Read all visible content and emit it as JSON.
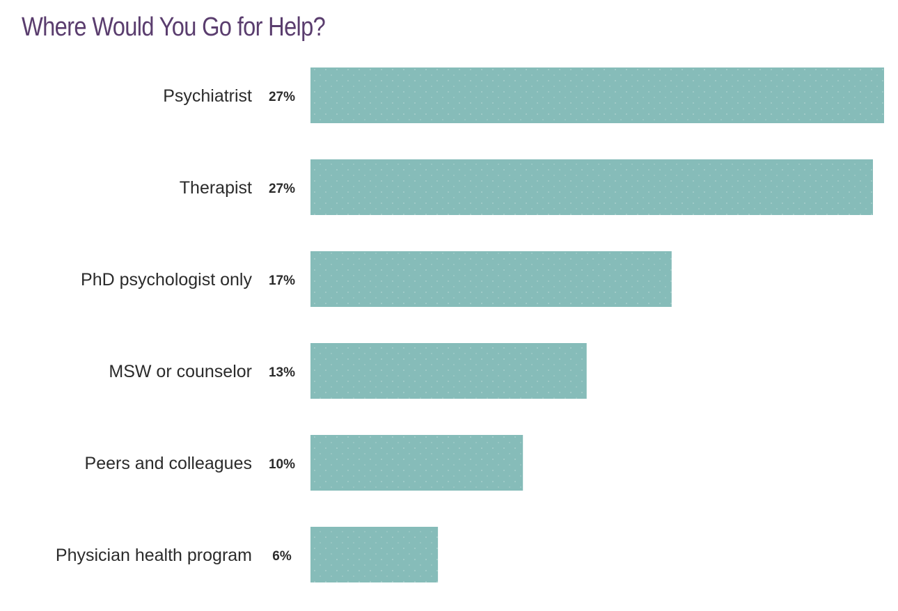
{
  "chart_data": {
    "type": "bar",
    "orientation": "horizontal",
    "title": "Where Would You Go for Help?",
    "categories": [
      "Psychiatrist",
      "Therapist",
      "PhD psychologist only",
      "MSW or counselor",
      "Peers and colleagues",
      "Physician health program"
    ],
    "values": [
      27,
      27,
      17,
      13,
      10,
      6
    ],
    "value_labels": [
      "27%",
      "27%",
      "17%",
      "13%",
      "10%",
      "6%"
    ],
    "xlabel": "",
    "ylabel": "",
    "unit": "%",
    "grid": false,
    "legend": "none",
    "bar_color": "#86bcb9",
    "title_color": "#5a3d6e",
    "text_color": "#2b2b2b"
  }
}
